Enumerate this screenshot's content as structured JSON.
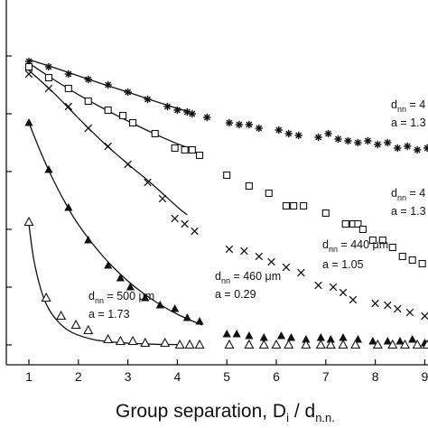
{
  "chart_data": {
    "type": "scatter",
    "title": "",
    "xlabel": "Group separation, D_i / d_n.n.",
    "xlabel_main": "Group separation, D",
    "xlabel_sub_i": "i",
    "xlabel_slash": " / d",
    "xlabel_sub_nn": "n.n.",
    "ylabel": "",
    "xlim": [
      0.6,
      9.1
    ],
    "ylim": [
      0,
      1.0
    ],
    "x_ticks": [
      1,
      2,
      3,
      4,
      5,
      6,
      7,
      8,
      9
    ],
    "x_tick_labels": [
      "1",
      "2",
      "3",
      "4",
      "5",
      "6",
      "7",
      "8",
      "9"
    ],
    "y_ticks": [
      0.055,
      0.215,
      0.375,
      0.535,
      0.695,
      0.855
    ],
    "grid": false,
    "legend": "none",
    "colors": {
      "marks": "#111111",
      "background": "#ffffff"
    },
    "series": [
      {
        "marker": "asterisk",
        "annotation": {
          "prefix": "d",
          "sub": "nn",
          "equals": " = 4",
          "a_text": "a = 1.3"
        },
        "x": [
          1.0,
          1.4,
          1.8,
          2.2,
          2.6,
          3.0,
          3.4,
          3.8,
          4.0,
          4.2,
          4.3,
          4.6,
          5.05,
          5.25,
          5.45,
          5.65,
          6.05,
          6.25,
          6.45,
          6.85,
          7.05,
          7.25,
          7.45,
          7.65,
          7.85,
          8.05,
          8.25,
          8.45,
          8.65,
          8.85,
          9.05
        ],
        "y": [
          0.84,
          0.825,
          0.805,
          0.79,
          0.775,
          0.755,
          0.735,
          0.715,
          0.705,
          0.7,
          0.695,
          0.685,
          0.67,
          0.665,
          0.665,
          0.655,
          0.65,
          0.64,
          0.635,
          0.63,
          0.64,
          0.625,
          0.62,
          0.615,
          0.62,
          0.61,
          0.615,
          0.6,
          0.605,
          0.595,
          0.6
        ],
        "fit_x": [
          1.0,
          1.5,
          2.0,
          2.5,
          3.0,
          3.5,
          4.0,
          4.25
        ],
        "fit_y": [
          0.845,
          0.823,
          0.8,
          0.777,
          0.755,
          0.732,
          0.71,
          0.7
        ]
      },
      {
        "marker": "open-square",
        "annotation": {
          "prefix": "d",
          "sub": "nn",
          "equals": " = 4",
          "a_text": "a = 1.3"
        },
        "x": [
          1.0,
          1.4,
          1.8,
          2.2,
          2.6,
          2.9,
          3.1,
          3.55,
          3.95,
          4.15,
          4.3,
          4.45,
          5.0,
          5.45,
          5.85,
          6.2,
          6.35,
          6.55,
          7.0,
          7.4,
          7.55,
          7.65,
          7.75,
          7.95,
          8.15,
          8.35,
          8.55,
          8.75,
          8.95
        ],
        "y": [
          0.825,
          0.795,
          0.765,
          0.73,
          0.705,
          0.69,
          0.67,
          0.64,
          0.6,
          0.595,
          0.595,
          0.58,
          0.525,
          0.495,
          0.475,
          0.44,
          0.44,
          0.44,
          0.42,
          0.39,
          0.39,
          0.39,
          0.375,
          0.345,
          0.345,
          0.325,
          0.3,
          0.29,
          0.28
        ],
        "fit_x": [
          1.0,
          1.5,
          2.0,
          2.5,
          3.0,
          3.5,
          4.0,
          4.35
        ],
        "fit_y": [
          0.835,
          0.79,
          0.748,
          0.71,
          0.675,
          0.642,
          0.612,
          0.595
        ]
      },
      {
        "marker": "cross",
        "annotation": {
          "prefix": "d",
          "sub": "nn",
          "equals": " = 440 μm",
          "a_text": "a = 1.05"
        },
        "x": [
          1.0,
          1.4,
          1.8,
          2.2,
          2.6,
          3.0,
          3.4,
          3.7,
          3.95,
          4.15,
          4.35,
          5.05,
          5.35,
          5.65,
          5.9,
          6.2,
          6.5,
          6.85,
          7.15,
          7.35,
          7.55,
          8.0,
          8.25,
          8.45,
          8.7,
          9.0
        ],
        "y": [
          0.805,
          0.765,
          0.715,
          0.655,
          0.605,
          0.555,
          0.505,
          0.46,
          0.405,
          0.39,
          0.37,
          0.32,
          0.315,
          0.3,
          0.285,
          0.27,
          0.255,
          0.22,
          0.215,
          0.2,
          0.18,
          0.17,
          0.165,
          0.155,
          0.145,
          0.135
        ],
        "fit_x": [
          1.0,
          1.5,
          2.0,
          2.5,
          3.0,
          3.5,
          4.0,
          4.2
        ],
        "fit_y": [
          0.815,
          0.753,
          0.683,
          0.616,
          0.556,
          0.499,
          0.437,
          0.415
        ]
      },
      {
        "marker": "filled-triangle",
        "annotation": {
          "prefix": "d",
          "sub": "nn",
          "equals": " = 460 μm",
          "a_text": "a = 0.29"
        },
        "x": [
          1.0,
          1.4,
          1.8,
          2.2,
          2.6,
          2.85,
          3.05,
          3.35,
          3.65,
          3.95,
          4.2,
          4.45,
          5.0,
          5.2,
          5.45,
          5.75,
          6.1,
          6.3,
          6.6,
          6.9,
          7.1,
          7.35,
          7.65,
          7.95,
          8.25,
          8.5,
          8.75,
          9.0
        ],
        "y": [
          0.67,
          0.54,
          0.435,
          0.345,
          0.275,
          0.24,
          0.215,
          0.185,
          0.165,
          0.155,
          0.13,
          0.12,
          0.085,
          0.085,
          0.08,
          0.075,
          0.08,
          0.075,
          0.07,
          0.075,
          0.07,
          0.075,
          0.07,
          0.065,
          0.065,
          0.065,
          0.07,
          0.06
        ],
        "fit_x": [
          1.0,
          1.25,
          1.5,
          1.75,
          2.0,
          2.5,
          3.0,
          3.5,
          4.0,
          4.5
        ],
        "fit_y": [
          0.67,
          0.585,
          0.51,
          0.445,
          0.388,
          0.3,
          0.232,
          0.18,
          0.14,
          0.11
        ]
      },
      {
        "marker": "open-triangle",
        "annotation": {
          "prefix": "d",
          "sub": "nn",
          "equals": " = 500 μm",
          "a_text": "a = 1.73"
        },
        "x": [
          1.0,
          1.35,
          1.65,
          1.95,
          2.2,
          2.6,
          2.85,
          3.1,
          3.35,
          3.75,
          4.05,
          4.25,
          4.45,
          5.05,
          5.45,
          5.75,
          6.0,
          6.25,
          6.6,
          6.9,
          7.1,
          7.35,
          7.6,
          8.05,
          8.35,
          8.6,
          8.85,
          9.05
        ],
        "y": [
          0.395,
          0.185,
          0.135,
          0.11,
          0.095,
          0.07,
          0.065,
          0.065,
          0.06,
          0.06,
          0.055,
          0.055,
          0.055,
          0.055,
          0.055,
          0.055,
          0.055,
          0.055,
          0.055,
          0.055,
          0.055,
          0.055,
          0.055,
          0.055,
          0.055,
          0.055,
          0.055,
          0.055
        ],
        "fit_x": [
          1.0,
          1.1,
          1.25,
          1.4,
          1.6,
          1.8,
          2.0,
          2.3,
          2.6,
          3.0,
          3.5,
          4.0
        ],
        "fit_y": [
          0.39,
          0.29,
          0.205,
          0.155,
          0.118,
          0.095,
          0.082,
          0.07,
          0.064,
          0.06,
          0.057,
          0.056
        ]
      }
    ]
  }
}
